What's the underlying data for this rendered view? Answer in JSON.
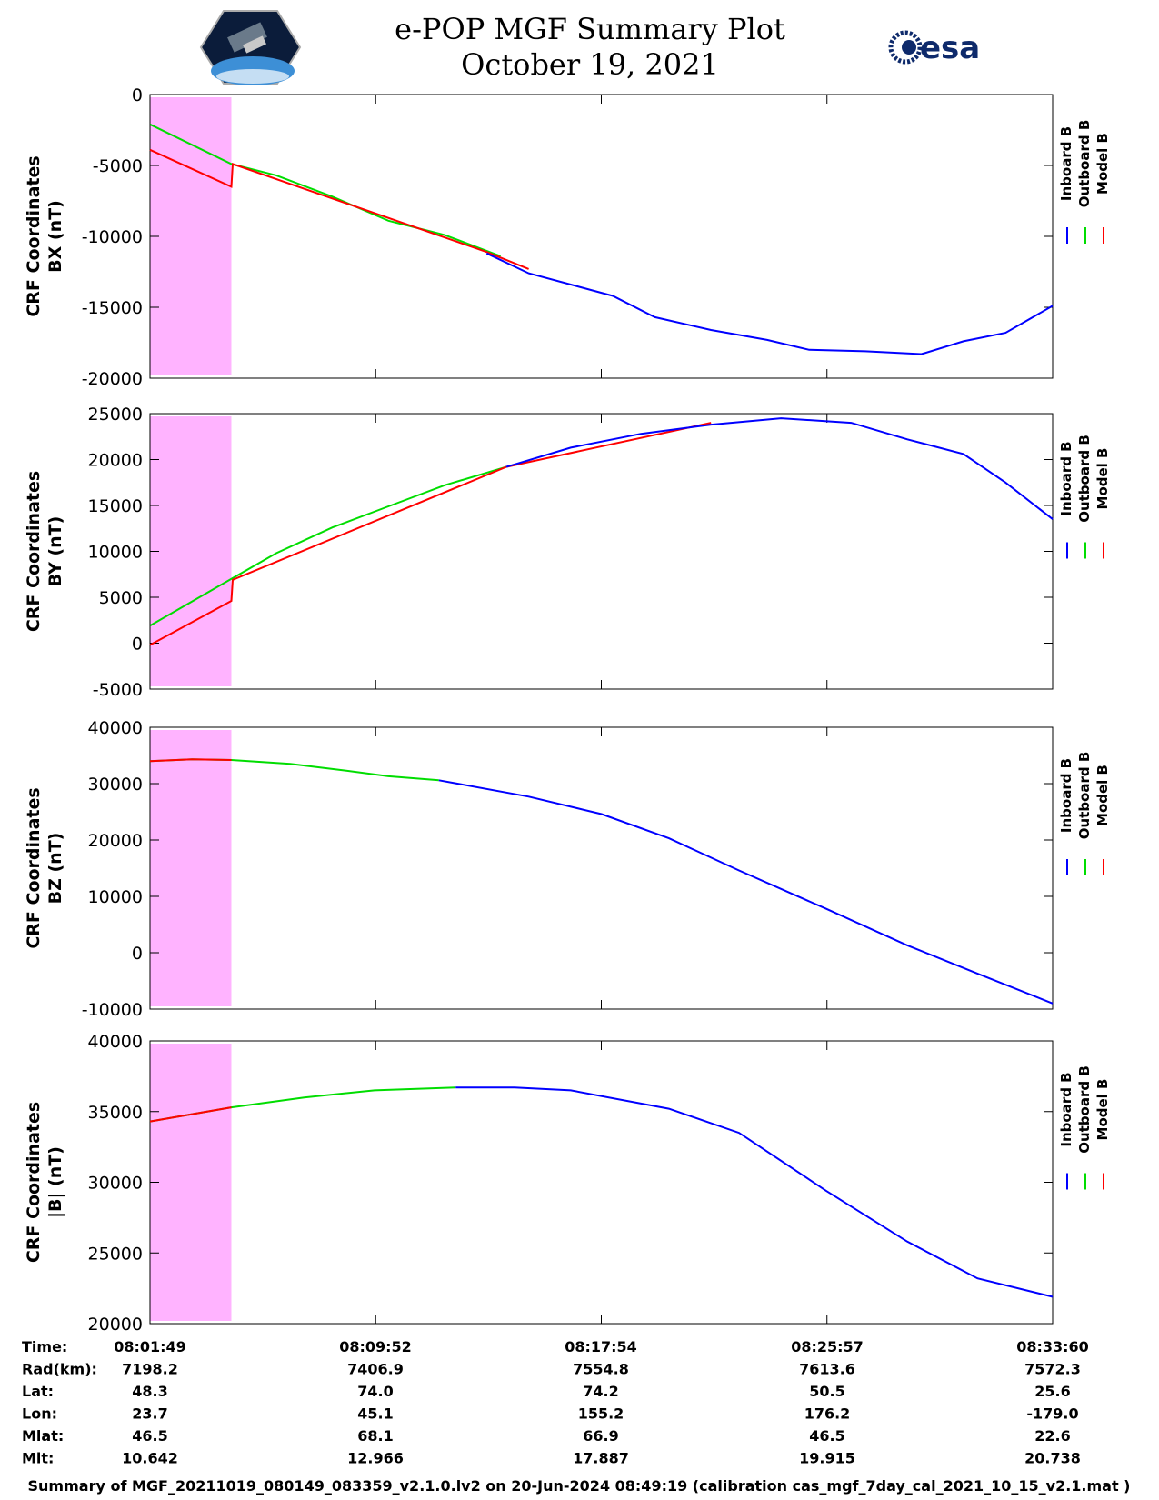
{
  "header": {
    "title_line1": "e-POP MGF Summary Plot",
    "title_line2": "October 19, 2021",
    "left_logo_icon": "cassiope-satellite-logo",
    "right_logo_icon": "esa-logo",
    "right_logo_text": "esa"
  },
  "colors": {
    "inboard": "#0000ff",
    "outboard": "#00dd00",
    "model": "#ff0000",
    "gap_band": "#ffb3ff"
  },
  "legend": [
    "Inboard B",
    "Outboard B",
    "Model B"
  ],
  "chart_data": [
    {
      "type": "line",
      "ylabel": [
        "CRF Coordinates",
        "BX (nT)"
      ],
      "ylim": [
        -20000,
        0
      ],
      "yticks": [
        -20000,
        -15000,
        -10000,
        -5000,
        0
      ],
      "x_unit": "minutes after 08:01:49",
      "xlim": [
        0,
        32.18
      ],
      "shaded_interval": [
        0,
        2.9
      ],
      "series": [
        {
          "name": "Outboard B",
          "x": [
            0,
            2.9,
            4.5,
            6.5,
            8.5,
            10.5,
            12.5
          ],
          "y": [
            -2100,
            -4900,
            -5700,
            -7200,
            -8900,
            -9900,
            -11400
          ]
        },
        {
          "name": "Model B",
          "x": [
            0,
            2.9,
            2.95,
            12.0,
            13.5
          ],
          "y": [
            -3900,
            -6500,
            -4900,
            -11100,
            -12300
          ]
        },
        {
          "name": "Inboard B",
          "x": [
            12.0,
            13.5,
            15.0,
            16.5,
            18.0,
            20.0,
            22.0,
            23.5,
            25.5,
            27.5,
            29.0,
            30.5,
            32.18
          ],
          "y": [
            -11200,
            -12600,
            -13400,
            -14200,
            -15700,
            -16600,
            -17300,
            -18000,
            -18100,
            -18300,
            -17400,
            -16800,
            -14900
          ]
        }
      ]
    },
    {
      "type": "line",
      "ylabel": [
        "CRF Coordinates",
        "BY (nT)"
      ],
      "ylim": [
        -5000,
        25000
      ],
      "yticks": [
        -5000,
        0,
        5000,
        10000,
        15000,
        20000,
        25000
      ],
      "x_unit": "minutes after 08:01:49",
      "xlim": [
        0,
        32.18
      ],
      "shaded_interval": [
        0,
        2.9
      ],
      "series": [
        {
          "name": "Outboard B",
          "x": [
            0,
            2.9,
            4.5,
            6.5,
            8.5,
            10.5,
            12.7
          ],
          "y": [
            1900,
            7000,
            9800,
            12600,
            14900,
            17200,
            19200
          ]
        },
        {
          "name": "Model B",
          "x": [
            0,
            2.9,
            2.95,
            12.7,
            20.0
          ],
          "y": [
            -200,
            4600,
            6900,
            19200,
            24000
          ]
        },
        {
          "name": "Inboard B",
          "x": [
            12.7,
            15.0,
            17.5,
            20.0,
            22.5,
            25.0,
            27.0,
            29.0,
            30.5,
            32.18
          ],
          "y": [
            19200,
            21300,
            22800,
            23800,
            24500,
            24000,
            22200,
            20600,
            17500,
            13500
          ]
        }
      ]
    },
    {
      "type": "line",
      "ylabel": [
        "CRF Coordinates",
        "BZ (nT)"
      ],
      "ylim": [
        -10000,
        40000
      ],
      "yticks": [
        -10000,
        0,
        10000,
        20000,
        30000,
        40000
      ],
      "x_unit": "minutes after 08:01:49",
      "xlim": [
        0,
        32.18
      ],
      "shaded_interval": [
        0,
        2.9
      ],
      "series": [
        {
          "name": "Outboard B",
          "x": [
            0,
            1.5,
            2.9,
            5.0,
            7.0,
            8.5,
            10.3
          ],
          "y": [
            34000,
            34300,
            34200,
            33500,
            32300,
            31300,
            30600
          ]
        },
        {
          "name": "Model B",
          "x": [
            0,
            1.5,
            2.9
          ],
          "y": [
            34000,
            34300,
            34200
          ]
        },
        {
          "name": "Inboard B",
          "x": [
            10.3,
            13.5,
            16.1,
            18.5,
            21.0,
            24.1,
            27.0,
            29.5,
            32.18
          ],
          "y": [
            30600,
            27700,
            24600,
            20300,
            14600,
            7800,
            1300,
            -3700,
            -9000
          ]
        }
      ]
    },
    {
      "type": "line",
      "ylabel": [
        "CRF Coordinates",
        "|B| (nT)"
      ],
      "ylim": [
        20000,
        40000
      ],
      "yticks": [
        20000,
        25000,
        30000,
        35000,
        40000
      ],
      "x_unit": "minutes after 08:01:49",
      "xlim": [
        0,
        32.18
      ],
      "shaded_interval": [
        0,
        2.9
      ],
      "series": [
        {
          "name": "Outboard B",
          "x": [
            0,
            2.9,
            5.5,
            8.0,
            10.9
          ],
          "y": [
            34300,
            35300,
            36000,
            36500,
            36700
          ]
        },
        {
          "name": "Model B",
          "x": [
            0,
            2.9
          ],
          "y": [
            34300,
            35300
          ]
        },
        {
          "name": "Inboard B",
          "x": [
            10.9,
            13.0,
            15.0,
            18.5,
            21.0,
            24.1,
            27.0,
            29.5,
            32.18
          ],
          "y": [
            36700,
            36700,
            36500,
            35200,
            33500,
            29400,
            25800,
            23200,
            21900
          ]
        }
      ]
    }
  ],
  "table": {
    "rows": [
      {
        "label": "Time:",
        "values": [
          "08:01:49",
          "08:09:52",
          "08:17:54",
          "08:25:57",
          "08:33:60"
        ]
      },
      {
        "label": "Rad(km):",
        "values": [
          "7198.2",
          "7406.9",
          "7554.8",
          "7613.6",
          "7572.3"
        ]
      },
      {
        "label": "Lat:",
        "values": [
          "48.3",
          "74.0",
          "74.2",
          "50.5",
          "25.6"
        ]
      },
      {
        "label": "Lon:",
        "values": [
          "23.7",
          "45.1",
          "155.2",
          "176.2",
          "-179.0"
        ]
      },
      {
        "label": "Mlat:",
        "values": [
          "46.5",
          "68.1",
          "66.9",
          "46.5",
          "22.6"
        ]
      },
      {
        "label": "Mlt:",
        "values": [
          "10.642",
          "12.966",
          "17.887",
          "19.915",
          "20.738"
        ]
      }
    ]
  },
  "footer": "Summary of MGF_20211019_080149_083359_v2.1.0.lv2 on 20-Jun-2024 08:49:19 (calibration cas_mgf_7day_cal_2021_10_15_v2.1.mat )"
}
